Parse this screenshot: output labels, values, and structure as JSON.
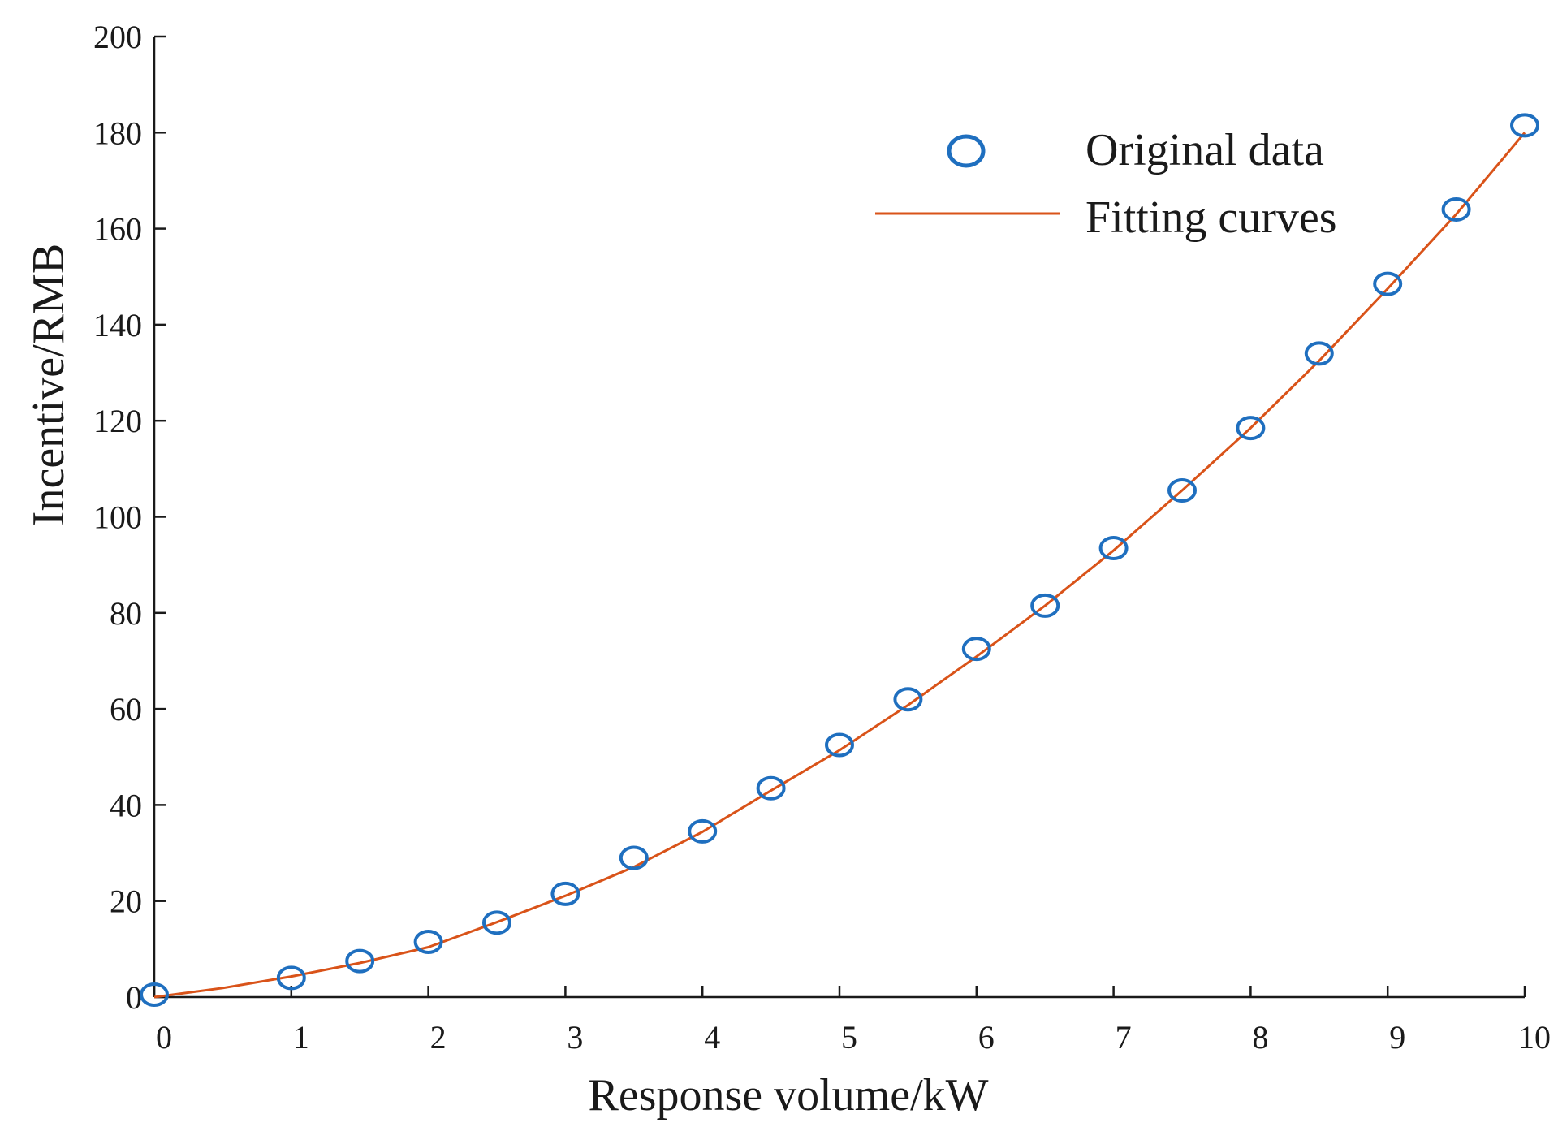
{
  "chart_data": {
    "type": "scatter",
    "xlabel": "Response volume/kW",
    "ylabel": "Incentive/RMB",
    "xlim": [
      0,
      10
    ],
    "ylim": [
      0,
      200
    ],
    "xticks": [
      0,
      1,
      2,
      3,
      4,
      5,
      6,
      7,
      8,
      9,
      10
    ],
    "yticks": [
      0,
      20,
      40,
      60,
      80,
      100,
      120,
      140,
      160,
      180,
      200
    ],
    "grid": false,
    "legend_position": "top-right",
    "series": [
      {
        "name": "Original data",
        "kind": "scatter",
        "marker": "circle",
        "color": "#1f6fbf",
        "x": [
          0,
          1,
          1.5,
          2,
          2.5,
          3,
          3.5,
          4,
          4.5,
          5,
          5.5,
          6,
          6.5,
          7,
          7.5,
          8,
          8.5,
          9,
          9.5,
          10
        ],
        "y": [
          0.5,
          4,
          7.5,
          11.5,
          15.5,
          21.5,
          29,
          34.5,
          43.5,
          52.5,
          62,
          72.5,
          81.5,
          93.5,
          105.5,
          118.5,
          134,
          148.5,
          164,
          181.5
        ]
      },
      {
        "name": "Fitting curves",
        "kind": "line",
        "color": "#d95319",
        "x": [
          0,
          0.5,
          1,
          1.5,
          2,
          2.5,
          3,
          3.5,
          4,
          4.5,
          5,
          5.5,
          6,
          6.5,
          7,
          7.5,
          8,
          8.5,
          9,
          9.5,
          10
        ],
        "y": [
          0,
          1.9,
          4.3,
          7.1,
          10.4,
          15.6,
          21.1,
          27.1,
          34.4,
          43,
          51.4,
          60.8,
          70.9,
          81.5,
          93,
          105.5,
          118.5,
          132.5,
          147.5,
          163,
          180
        ]
      }
    ]
  }
}
